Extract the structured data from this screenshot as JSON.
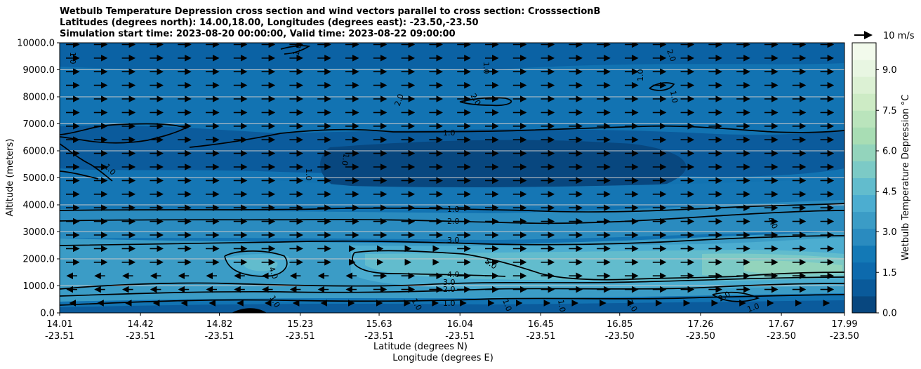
{
  "chart_data": {
    "type": "heatmap",
    "title_lines": [
      "Wetbulb Temperature Depression cross section and wind vectors parallel to cross section: CrosssectionB",
      "Latitudes (degrees north): 14.00,18.00, Longitudes (degrees east): -23.50,-23.50",
      "Simulation start time: 2023-08-20 00:00:00, Valid time: 2023-08-22 09:00:00"
    ],
    "ylabel": "Altitude (meters)",
    "xlabel_lat": "Latitude (degrees N)",
    "xlabel_lon": "Longitude (degrees E)",
    "ylim": [
      0,
      10000
    ],
    "y_ticks": [
      "0.0",
      "1000.0",
      "2000.0",
      "3000.0",
      "4000.0",
      "5000.0",
      "6000.0",
      "7000.0",
      "8000.0",
      "9000.0",
      "10000.0"
    ],
    "x_ticks": [
      {
        "lat": "14.01",
        "lon": "-23.51"
      },
      {
        "lat": "14.42",
        "lon": "-23.51"
      },
      {
        "lat": "14.82",
        "lon": "-23.51"
      },
      {
        "lat": "15.23",
        "lon": "-23.51"
      },
      {
        "lat": "15.63",
        "lon": "-23.51"
      },
      {
        "lat": "16.04",
        "lon": "-23.51"
      },
      {
        "lat": "16.45",
        "lon": "-23.51"
      },
      {
        "lat": "16.85",
        "lon": "-23.50"
      },
      {
        "lat": "17.26",
        "lon": "-23.50"
      },
      {
        "lat": "17.67",
        "lon": "-23.50"
      },
      {
        "lat": "17.99",
        "lon": "-23.50"
      }
    ],
    "colorbar": {
      "label": "Wetbulb Temperature Depression °C",
      "range": [
        0,
        10
      ],
      "ticks": [
        "0.0",
        "1.5",
        "3.0",
        "4.5",
        "6.0",
        "7.5",
        "9.0"
      ],
      "levels": [
        "#08477f",
        "#0a5a9a",
        "#0d6aad",
        "#1379b6",
        "#2a8bbf",
        "#3b9cc6",
        "#4cadd0",
        "#62bccd",
        "#7ccac6",
        "#93d4bc",
        "#a8ddb4",
        "#bae4bc",
        "#cdebc5",
        "#dcf1d4",
        "#e8f6e2",
        "#f2faec"
      ]
    },
    "contour_labels": [
      "1.0",
      "2.0",
      "3.0",
      "4.0",
      "5.0"
    ],
    "wind_legend": "10 m/s"
  }
}
